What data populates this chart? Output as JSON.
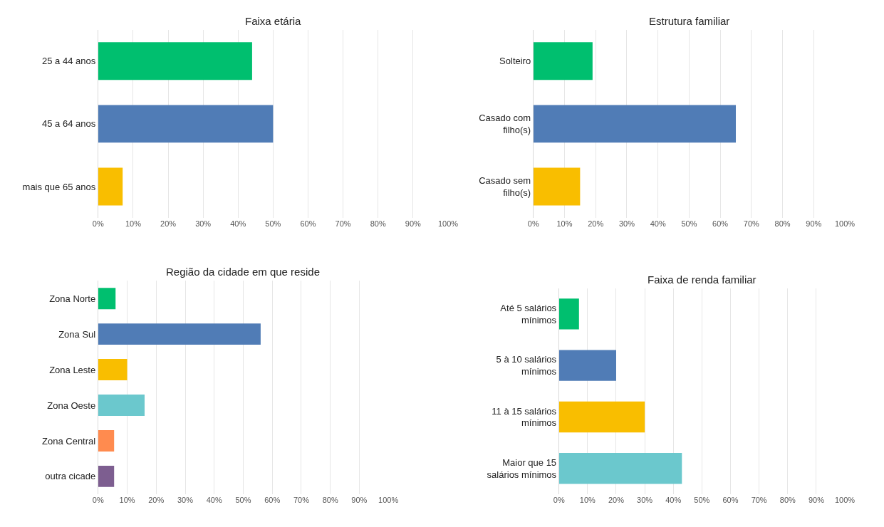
{
  "chart_data": [
    {
      "type": "bar",
      "orientation": "horizontal",
      "title": "Faixa etária",
      "categories": [
        "25 a 44 anos",
        "45 a 64 anos",
        "mais que 65 anos"
      ],
      "values": [
        44,
        50,
        7
      ],
      "colors": [
        "#00bf6f",
        "#507cb6",
        "#f9be00"
      ],
      "xlim": [
        0,
        100
      ],
      "xticks": [
        {
          "value": 0,
          "label": "0%"
        },
        {
          "value": 10,
          "label": "10%"
        },
        {
          "value": 20,
          "label": "20%"
        },
        {
          "value": 30,
          "label": "30%"
        },
        {
          "value": 40,
          "label": "40%"
        },
        {
          "value": 50,
          "label": "50%"
        },
        {
          "value": 60,
          "label": "60%"
        },
        {
          "value": 70,
          "label": "70%"
        },
        {
          "value": 80,
          "label": "80%"
        },
        {
          "value": 90,
          "label": "90%"
        },
        {
          "value": 100,
          "label": "100%"
        }
      ],
      "grid": "x"
    },
    {
      "type": "bar",
      "orientation": "horizontal",
      "title": "Estrutura familiar",
      "categories": [
        "Solteiro",
        "Casado com filho(s)",
        "Casado sem filho(s)"
      ],
      "values": [
        19,
        65,
        15
      ],
      "colors": [
        "#00bf6f",
        "#507cb6",
        "#f9be00"
      ],
      "xlim": [
        0,
        100
      ],
      "xticks": [
        {
          "value": 0,
          "label": "0%"
        },
        {
          "value": 10,
          "label": "10%"
        },
        {
          "value": 20,
          "label": "20%"
        },
        {
          "value": 30,
          "label": "30%"
        },
        {
          "value": 40,
          "label": "40%"
        },
        {
          "value": 50,
          "label": "50%"
        },
        {
          "value": 60,
          "label": "60%"
        },
        {
          "value": 70,
          "label": "70%"
        },
        {
          "value": 80,
          "label": "80%"
        },
        {
          "value": 90,
          "label": "90%"
        },
        {
          "value": 100,
          "label": "100%"
        }
      ],
      "grid": "x"
    },
    {
      "type": "bar",
      "orientation": "horizontal",
      "title": "Região da cidade em que reside",
      "categories": [
        "Zona Norte",
        "Zona Sul",
        "Zona Leste",
        "Zona Oeste",
        "Zona Central",
        "outra cicade"
      ],
      "values": [
        6,
        56,
        10,
        16,
        5.5,
        5.5
      ],
      "colors": [
        "#00bf6f",
        "#507cb6",
        "#f9be00",
        "#6bc8cd",
        "#ff8b4f",
        "#7d5e90"
      ],
      "xlim": [
        0,
        100
      ],
      "xticks": [
        {
          "value": 0,
          "label": "0%"
        },
        {
          "value": 10,
          "label": "10%"
        },
        {
          "value": 20,
          "label": "20%"
        },
        {
          "value": 30,
          "label": "30%"
        },
        {
          "value": 40,
          "label": "40%"
        },
        {
          "value": 50,
          "label": "50%"
        },
        {
          "value": 60,
          "label": "60%"
        },
        {
          "value": 70,
          "label": "70%"
        },
        {
          "value": 80,
          "label": "80%"
        },
        {
          "value": 90,
          "label": "90%"
        },
        {
          "value": 100,
          "label": "100%"
        }
      ],
      "grid": "x"
    },
    {
      "type": "bar",
      "orientation": "horizontal",
      "title": "Faixa de renda familiar",
      "categories": [
        "Até 5 salários mínimos",
        "5 à 10 salários mínimos",
        "11 à 15 salários mínimos",
        "Maior que 15 salários mínimos"
      ],
      "values": [
        7,
        20,
        30,
        43
      ],
      "colors": [
        "#00bf6f",
        "#507cb6",
        "#f9be00",
        "#6bc8cd"
      ],
      "xlim": [
        0,
        100
      ],
      "xticks": [
        {
          "value": 0,
          "label": "0%"
        },
        {
          "value": 10,
          "label": "10%"
        },
        {
          "value": 20,
          "label": "20%"
        },
        {
          "value": 30,
          "label": "30%"
        },
        {
          "value": 40,
          "label": "40%"
        },
        {
          "value": 50,
          "label": "50%"
        },
        {
          "value": 60,
          "label": "60%"
        },
        {
          "value": 70,
          "label": "70%"
        },
        {
          "value": 80,
          "label": "80%"
        },
        {
          "value": 90,
          "label": "90%"
        },
        {
          "value": 100,
          "label": "100%"
        }
      ],
      "grid": "x"
    }
  ]
}
